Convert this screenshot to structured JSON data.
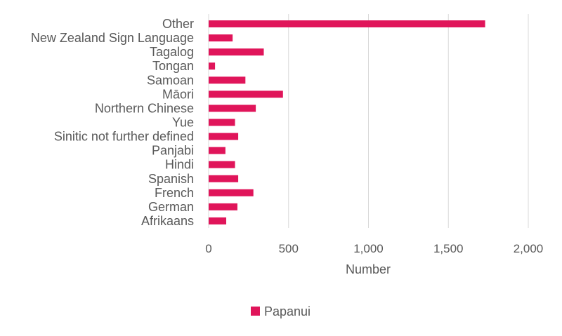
{
  "chart_data": {
    "type": "bar",
    "orientation": "horizontal",
    "categories": [
      "Other",
      "New Zealand Sign Language",
      "Tagalog",
      "Tongan",
      "Samoan",
      "Māori",
      "Northern Chinese",
      "Yue",
      "Sinitic not further defined",
      "Panjabi",
      "Hindi",
      "Spanish",
      "French",
      "German",
      "Afrikaans"
    ],
    "series": [
      {
        "name": "Papanui",
        "values": [
          1730,
          150,
          345,
          40,
          230,
          465,
          295,
          165,
          185,
          105,
          165,
          185,
          280,
          180,
          110
        ]
      }
    ],
    "xlabel": "Number",
    "xlim": [
      0,
      2000
    ],
    "xticks": [
      0,
      500,
      1000,
      1500,
      2000
    ],
    "xtick_labels": [
      "0",
      "500",
      "1,000",
      "1,500",
      "2,000"
    ],
    "grid": "vertical",
    "legend_position": "bottom",
    "colors": {
      "bar": "#e0155a",
      "grid": "#d9d9d9",
      "text": "#595959"
    }
  }
}
